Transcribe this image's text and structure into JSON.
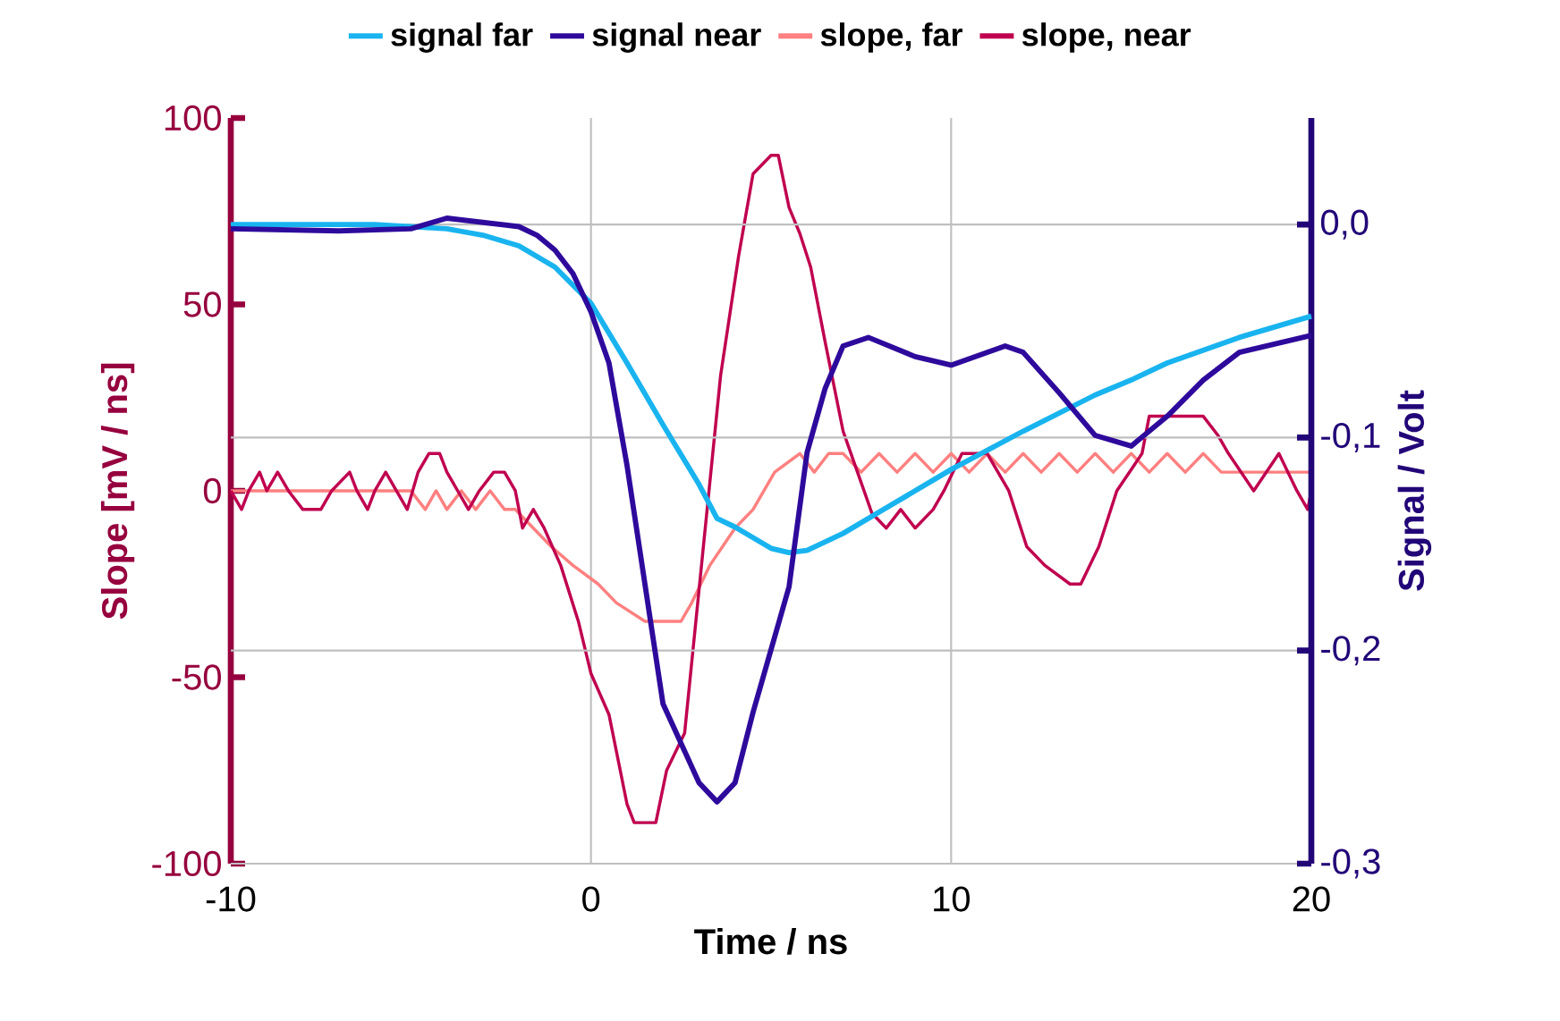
{
  "chart_data": {
    "type": "line",
    "xlabel": "Time / ns",
    "ylabel": "Slope [mV / ns]",
    "y2label": "Signal / Volt",
    "xlim": [
      -10,
      20
    ],
    "xticks": [
      -10,
      0,
      10,
      20
    ],
    "ylim": [
      -100,
      100
    ],
    "yticks": [
      -100,
      -50,
      0,
      50,
      100
    ],
    "y2lim": [
      -0.3,
      0.05
    ],
    "y2ticks": [
      {
        "value": 0,
        "label": "0,0"
      },
      {
        "value": -0.1,
        "label": "-0,1"
      },
      {
        "value": -0.2,
        "label": "-0,2"
      },
      {
        "value": -0.3,
        "label": "-0,3"
      }
    ],
    "grid": true,
    "legend": "top",
    "marker": "none",
    "line_style": "solid",
    "series": [
      {
        "name": "signal far",
        "color": "#19b4ef",
        "axis": "y2",
        "x": [
          -10,
          -6,
          -4,
          -3,
          -2,
          -1,
          0,
          1,
          2,
          3,
          3.5,
          4,
          5,
          5.5,
          6,
          7,
          8,
          10,
          12,
          14,
          15,
          16,
          18,
          20
        ],
        "values": [
          0.0,
          0.0,
          -0.002,
          -0.005,
          -0.01,
          -0.02,
          -0.037,
          -0.065,
          -0.094,
          -0.122,
          -0.138,
          -0.142,
          -0.152,
          -0.154,
          -0.153,
          -0.145,
          -0.135,
          -0.115,
          -0.097,
          -0.08,
          -0.073,
          -0.065,
          -0.053,
          -0.043
        ]
      },
      {
        "name": "signal near",
        "color": "#2e0a9c",
        "axis": "y2",
        "x": [
          -10,
          -7,
          -5,
          -4,
          -2,
          -1.5,
          -1,
          -0.5,
          0,
          0.5,
          1,
          2,
          3,
          3.5,
          4,
          4.5,
          5.5,
          6,
          6.5,
          7,
          7.7,
          9,
          10,
          11.5,
          12,
          13,
          14,
          15,
          16,
          17,
          18,
          19,
          20
        ],
        "values": [
          -0.002,
          -0.003,
          -0.002,
          0.003,
          -0.001,
          -0.005,
          -0.012,
          -0.023,
          -0.041,
          -0.065,
          -0.113,
          -0.225,
          -0.262,
          -0.271,
          -0.262,
          -0.229,
          -0.17,
          -0.107,
          -0.077,
          -0.057,
          -0.053,
          -0.062,
          -0.066,
          -0.057,
          -0.06,
          -0.079,
          -0.099,
          -0.104,
          -0.09,
          -0.073,
          -0.06,
          -0.056,
          -0.052
        ]
      },
      {
        "name": "slope, far",
        "color": "#ff8080",
        "x": [
          -10,
          -5,
          -4.6,
          -4.3,
          -4,
          -3.6,
          -3.2,
          -2.8,
          -2.4,
          -2.1,
          -1.6,
          -1.1,
          -0.5,
          0.2,
          0.7,
          1.5,
          2.5,
          2.8,
          3.3,
          4,
          4.5,
          5.1,
          5.8,
          6.2,
          6.6,
          7,
          7.5,
          8,
          8.5,
          9,
          9.5,
          10,
          10.5,
          11,
          11.5,
          12,
          12.5,
          13,
          13.5,
          14,
          14.5,
          15,
          15.5,
          16,
          16.5,
          17,
          17.5,
          17.8,
          18.5,
          20
        ],
        "values": [
          0,
          0,
          -5,
          0,
          -5,
          0,
          -5,
          0,
          -5,
          -5,
          -10,
          -15,
          -20,
          -25,
          -30,
          -35,
          -35,
          -30,
          -20,
          -10,
          -5,
          5,
          10,
          5,
          10,
          10,
          5,
          10,
          5,
          10,
          5,
          10,
          5,
          10,
          5,
          10,
          5,
          10,
          5,
          10,
          5,
          10,
          5,
          10,
          5,
          10,
          5,
          5,
          5,
          5
        ]
      },
      {
        "name": "slope, near",
        "color": "#c0004f",
        "x": [
          -10,
          -9.7,
          -9.5,
          -9.2,
          -9,
          -8.7,
          -8.4,
          -8,
          -7.5,
          -7.2,
          -6.7,
          -6.5,
          -6.2,
          -6,
          -5.7,
          -5.4,
          -5.1,
          -4.8,
          -4.5,
          -4.2,
          -4,
          -3.7,
          -3.4,
          -3.1,
          -2.7,
          -2.4,
          -2.1,
          -1.9,
          -1.6,
          -1.3,
          -0.84,
          -0.35,
          0,
          0.5,
          1,
          1.2,
          1.8,
          2.1,
          2.6,
          3.1,
          3.6,
          4.1,
          4.5,
          5,
          5.2,
          5.5,
          5.8,
          6.1,
          6.5,
          7,
          7.4,
          7.8,
          8.2,
          8.6,
          9,
          9.5,
          9.8,
          10.3,
          11,
          11.6,
          12.1,
          12.6,
          13.3,
          13.6,
          14.1,
          14.6,
          15.3,
          15.5,
          17,
          17.4,
          17.7,
          18.4,
          19.1,
          19.6,
          19.9,
          20
        ],
        "values": [
          0,
          -5,
          0,
          5,
          0,
          5,
          0,
          -5,
          -5,
          0,
          5,
          0,
          -5,
          0,
          5,
          0,
          -5,
          5,
          10,
          10,
          5,
          0,
          -5,
          0,
          5,
          5,
          0,
          -10,
          -5,
          -10,
          -20,
          -35,
          -49,
          -60,
          -84,
          -89,
          -89,
          -75,
          -65,
          -17,
          31,
          63,
          85,
          90,
          90,
          76,
          69,
          60,
          40,
          16,
          5,
          -6,
          -10,
          -5,
          -10,
          -5,
          0,
          10,
          10,
          0,
          -15,
          -20,
          -25,
          -25,
          -15,
          0,
          10,
          20,
          20,
          15,
          10,
          0,
          10,
          0,
          -5,
          0
        ]
      }
    ]
  }
}
